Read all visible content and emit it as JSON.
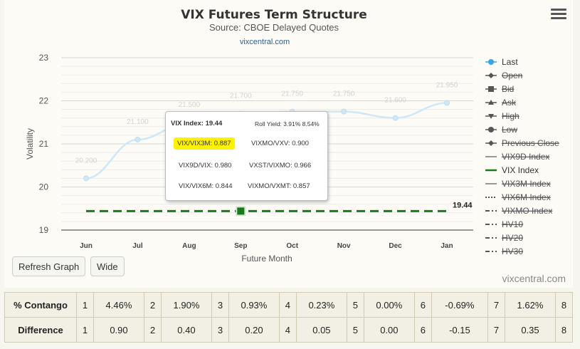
{
  "header": {
    "title": "VIX Futures Term Structure",
    "subtitle": "Source: CBOE Delayed Quotes",
    "link": "vixcentral.com",
    "menu_icon": "hamburger-menu-icon"
  },
  "chart_data": {
    "type": "line",
    "title": "VIX Futures Term Structure",
    "subtitle": "Source: CBOE Delayed Quotes",
    "xlabel": "Future Month",
    "ylabel": "Volatility",
    "categories": [
      "Jun",
      "Jul",
      "Aug",
      "Sep",
      "Oct",
      "Nov",
      "Dec",
      "Jan"
    ],
    "ylim": [
      19,
      23
    ],
    "yticks": [
      "19",
      "20",
      "21",
      "22",
      "23"
    ],
    "grid": true,
    "legend_position": "right",
    "series": [
      {
        "name": "Last",
        "color": "#3aa3e3",
        "values": [
          20.2,
          21.1,
          21.5,
          21.7,
          21.75,
          21.75,
          21.6,
          21.95
        ],
        "labels": [
          "20.200",
          "21.100",
          "21.500",
          "21.700",
          "21.750",
          "21.750",
          "21.600",
          "21.950"
        ]
      },
      {
        "name": "VIX Index",
        "color": "#1a7a1a",
        "value": 19.44,
        "end_label": "19.44",
        "highlight_category": "Sep"
      }
    ],
    "credit": "vixcentral.com"
  },
  "legend": [
    {
      "label": "Last",
      "symbol": "circle-line",
      "color": "#3aa3e3",
      "struck": false
    },
    {
      "label": "Open",
      "symbol": "diamond-line",
      "color": "#555555",
      "struck": true
    },
    {
      "label": "Bid",
      "symbol": "square-line",
      "color": "#555555",
      "struck": true
    },
    {
      "label": "Ask",
      "symbol": "triangle-up-line",
      "color": "#555555",
      "struck": true
    },
    {
      "label": "High",
      "symbol": "triangle-down-line",
      "color": "#555555",
      "struck": true
    },
    {
      "label": "Low",
      "symbol": "circle-line",
      "color": "#555555",
      "struck": true
    },
    {
      "label": "Previous Close",
      "symbol": "diamond-line",
      "color": "#555555",
      "struck": true
    },
    {
      "label": "VIX9D Index",
      "symbol": "solid-line",
      "color": "#777777",
      "struck": true
    },
    {
      "label": "VIX Index",
      "symbol": "solid-line",
      "color": "#1a7a1a",
      "struck": false
    },
    {
      "label": "VIX3M Index",
      "symbol": "solid-line",
      "color": "#777777",
      "struck": true
    },
    {
      "label": "VIX6M Index",
      "symbol": "dotted-line",
      "color": "#555555",
      "struck": true
    },
    {
      "label": "VIXMO Index",
      "symbol": "dash-dot-line",
      "color": "#555555",
      "struck": true
    },
    {
      "label": "HV10",
      "symbol": "dash-dot-line",
      "color": "#555555",
      "struck": true
    },
    {
      "label": "HV20",
      "symbol": "dash-dot-line",
      "color": "#555555",
      "struck": true
    },
    {
      "label": "HV30",
      "symbol": "dash-dot-line",
      "color": "#555555",
      "struck": true
    }
  ],
  "tooltip": {
    "vix_index": "VIX Index: 19.44",
    "roll_yield": "Roll Yield: 3.91% 8.54%",
    "vix_vix3m": "VIX/VIX3M: 0.887",
    "vixmo_vxv": "VIXMO/VXV: 0.900",
    "vix9d_vix": "VIX9D/VIX: 0.980",
    "vxst_vixmo": "VXST/VIXMO: 0.966",
    "vix_vix6m": "VIX/VIX6M: 0.844",
    "vixmo_vxmt": "VIXMO/VXMT: 0.857"
  },
  "buttons": {
    "refresh": "Refresh Graph",
    "wide": "Wide"
  },
  "table": {
    "rows": [
      {
        "label": "% Contango",
        "cells": [
          "1",
          "4.46%",
          "2",
          "1.90%",
          "3",
          "0.93%",
          "4",
          "0.23%",
          "5",
          "0.00%",
          "6",
          "-0.69%",
          "7",
          "1.62%",
          "8"
        ]
      },
      {
        "label": "Difference",
        "cells": [
          "1",
          "0.90",
          "2",
          "0.40",
          "3",
          "0.20",
          "4",
          "0.05",
          "5",
          "0.00",
          "6",
          "-0.15",
          "7",
          "0.35",
          "8"
        ]
      }
    ]
  }
}
